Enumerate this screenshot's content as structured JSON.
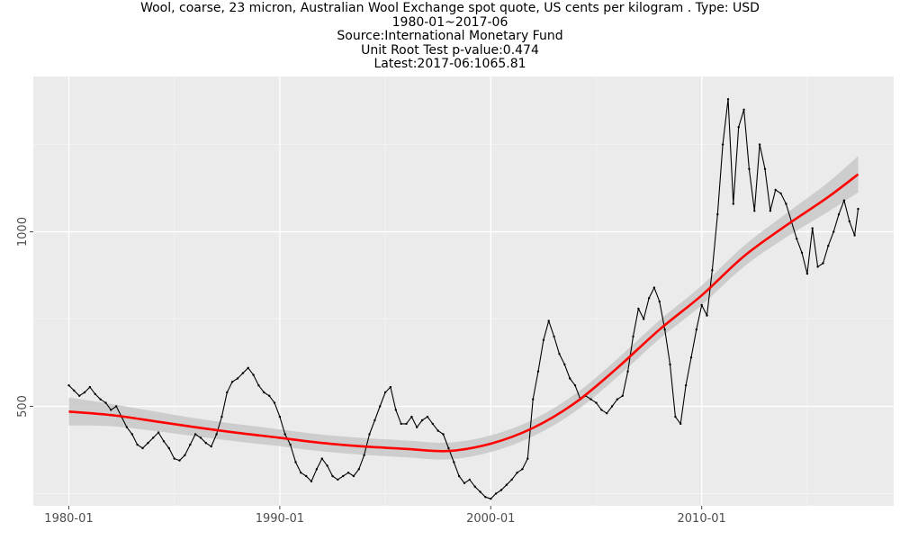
{
  "chart_data": {
    "type": "line",
    "title_lines": [
      "Wool, coarse, 23 micron, Australian Wool Exchange spot quote, US cents per kilogram . Type: USD",
      "1980-01~2017-06",
      "Source:International Monetary Fund",
      "Unit Root Test p-value:0.474",
      "Latest:2017-06:1065.81"
    ],
    "xlabel": "",
    "ylabel": "",
    "x_range": [
      "1980-01",
      "2017-06"
    ],
    "ylim": [
      215,
      1445
    ],
    "x_ticks": [
      "1980-01",
      "1990-01",
      "2000-01",
      "2010-01"
    ],
    "y_ticks": [
      500,
      1000
    ],
    "series": [
      {
        "style": "line-with-points",
        "color": "#000000",
        "points": [
          [
            "1980-01",
            560
          ],
          [
            "1980-04",
            545
          ],
          [
            "1980-07",
            530
          ],
          [
            "1980-10",
            540
          ],
          [
            "1981-01",
            555
          ],
          [
            "1981-04",
            535
          ],
          [
            "1981-07",
            520
          ],
          [
            "1981-10",
            510
          ],
          [
            "1982-01",
            490
          ],
          [
            "1982-04",
            500
          ],
          [
            "1982-07",
            470
          ],
          [
            "1982-10",
            440
          ],
          [
            "1983-01",
            420
          ],
          [
            "1983-04",
            390
          ],
          [
            "1983-07",
            380
          ],
          [
            "1983-10",
            395
          ],
          [
            "1984-01",
            410
          ],
          [
            "1984-04",
            425
          ],
          [
            "1984-07",
            400
          ],
          [
            "1984-10",
            380
          ],
          [
            "1985-01",
            350
          ],
          [
            "1985-04",
            345
          ],
          [
            "1985-07",
            360
          ],
          [
            "1985-10",
            390
          ],
          [
            "1986-01",
            420
          ],
          [
            "1986-04",
            410
          ],
          [
            "1986-07",
            395
          ],
          [
            "1986-10",
            385
          ],
          [
            "1987-01",
            420
          ],
          [
            "1987-04",
            470
          ],
          [
            "1987-07",
            540
          ],
          [
            "1987-10",
            570
          ],
          [
            "1988-01",
            580
          ],
          [
            "1988-04",
            595
          ],
          [
            "1988-07",
            610
          ],
          [
            "1988-10",
            590
          ],
          [
            "1989-01",
            560
          ],
          [
            "1989-04",
            540
          ],
          [
            "1989-07",
            530
          ],
          [
            "1989-10",
            510
          ],
          [
            "1990-01",
            470
          ],
          [
            "1990-04",
            420
          ],
          [
            "1990-07",
            390
          ],
          [
            "1990-10",
            340
          ],
          [
            "1991-01",
            310
          ],
          [
            "1991-04",
            300
          ],
          [
            "1991-07",
            285
          ],
          [
            "1991-10",
            320
          ],
          [
            "1992-01",
            350
          ],
          [
            "1992-04",
            330
          ],
          [
            "1992-07",
            300
          ],
          [
            "1992-10",
            290
          ],
          [
            "1993-01",
            300
          ],
          [
            "1993-04",
            310
          ],
          [
            "1993-07",
            300
          ],
          [
            "1993-10",
            320
          ],
          [
            "1994-01",
            360
          ],
          [
            "1994-04",
            420
          ],
          [
            "1994-07",
            460
          ],
          [
            "1994-10",
            500
          ],
          [
            "1995-01",
            540
          ],
          [
            "1995-04",
            555
          ],
          [
            "1995-07",
            490
          ],
          [
            "1995-10",
            450
          ],
          [
            "1996-01",
            450
          ],
          [
            "1996-04",
            470
          ],
          [
            "1996-07",
            440
          ],
          [
            "1996-10",
            460
          ],
          [
            "1997-01",
            470
          ],
          [
            "1997-04",
            450
          ],
          [
            "1997-07",
            430
          ],
          [
            "1997-10",
            420
          ],
          [
            "1998-01",
            380
          ],
          [
            "1998-04",
            340
          ],
          [
            "1998-07",
            300
          ],
          [
            "1998-10",
            280
          ],
          [
            "1999-01",
            290
          ],
          [
            "1999-04",
            270
          ],
          [
            "1999-07",
            255
          ],
          [
            "1999-10",
            240
          ],
          [
            "2000-01",
            235
          ],
          [
            "2000-04",
            250
          ],
          [
            "2000-07",
            260
          ],
          [
            "2000-10",
            275
          ],
          [
            "2001-01",
            290
          ],
          [
            "2001-04",
            310
          ],
          [
            "2001-07",
            320
          ],
          [
            "2001-10",
            350
          ],
          [
            "2002-01",
            520
          ],
          [
            "2002-04",
            600
          ],
          [
            "2002-07",
            690
          ],
          [
            "2002-10",
            745
          ],
          [
            "2003-01",
            700
          ],
          [
            "2003-04",
            650
          ],
          [
            "2003-07",
            620
          ],
          [
            "2003-10",
            580
          ],
          [
            "2004-01",
            560
          ],
          [
            "2004-04",
            520
          ],
          [
            "2004-07",
            530
          ],
          [
            "2004-10",
            520
          ],
          [
            "2005-01",
            510
          ],
          [
            "2005-04",
            490
          ],
          [
            "2005-07",
            480
          ],
          [
            "2005-10",
            500
          ],
          [
            "2006-01",
            520
          ],
          [
            "2006-04",
            530
          ],
          [
            "2006-07",
            600
          ],
          [
            "2006-10",
            700
          ],
          [
            "2007-01",
            780
          ],
          [
            "2007-04",
            750
          ],
          [
            "2007-07",
            810
          ],
          [
            "2007-10",
            840
          ],
          [
            "2008-01",
            800
          ],
          [
            "2008-04",
            720
          ],
          [
            "2008-07",
            620
          ],
          [
            "2008-10",
            470
          ],
          [
            "2009-01",
            450
          ],
          [
            "2009-04",
            560
          ],
          [
            "2009-07",
            640
          ],
          [
            "2009-10",
            720
          ],
          [
            "2010-01",
            790
          ],
          [
            "2010-04",
            760
          ],
          [
            "2010-07",
            890
          ],
          [
            "2010-10",
            1050
          ],
          [
            "2011-01",
            1250
          ],
          [
            "2011-04",
            1380
          ],
          [
            "2011-07",
            1080
          ],
          [
            "2011-10",
            1300
          ],
          [
            "2012-01",
            1350
          ],
          [
            "2012-04",
            1180
          ],
          [
            "2012-07",
            1060
          ],
          [
            "2012-10",
            1250
          ],
          [
            "2013-01",
            1180
          ],
          [
            "2013-04",
            1060
          ],
          [
            "2013-07",
            1120
          ],
          [
            "2013-10",
            1110
          ],
          [
            "2014-01",
            1080
          ],
          [
            "2014-04",
            1030
          ],
          [
            "2014-07",
            980
          ],
          [
            "2014-10",
            940
          ],
          [
            "2015-01",
            880
          ],
          [
            "2015-04",
            1010
          ],
          [
            "2015-07",
            900
          ],
          [
            "2015-10",
            910
          ],
          [
            "2016-01",
            960
          ],
          [
            "2016-04",
            1000
          ],
          [
            "2016-07",
            1050
          ],
          [
            "2016-10",
            1090
          ],
          [
            "2017-01",
            1030
          ],
          [
            "2017-04",
            990
          ],
          [
            "2017-06",
            1065.81
          ]
        ]
      },
      {
        "style": "smooth-with-band",
        "color": "#ff0000",
        "band_color": "#c8c8c8",
        "points": [
          [
            "1980-01",
            485,
            40
          ],
          [
            "1982-01",
            475,
            32
          ],
          [
            "1984-01",
            458,
            28
          ],
          [
            "1986-01",
            440,
            26
          ],
          [
            "1988-01",
            424,
            25
          ],
          [
            "1990-01",
            410,
            24
          ],
          [
            "1992-01",
            395,
            24
          ],
          [
            "1994-01",
            385,
            24
          ],
          [
            "1996-01",
            378,
            24
          ],
          [
            "1998-01",
            372,
            24
          ],
          [
            "2000-01",
            393,
            24
          ],
          [
            "2002-01",
            438,
            24
          ],
          [
            "2004-01",
            510,
            25
          ],
          [
            "2006-01",
            610,
            26
          ],
          [
            "2008-01",
            720,
            27
          ],
          [
            "2010-01",
            818,
            28
          ],
          [
            "2012-01",
            930,
            30
          ],
          [
            "2014-01",
            1018,
            34
          ],
          [
            "2016-01",
            1100,
            42
          ],
          [
            "2017-06",
            1165,
            52
          ]
        ]
      }
    ],
    "panel_background": "#ebebeb",
    "grid": true,
    "legend": "none"
  }
}
